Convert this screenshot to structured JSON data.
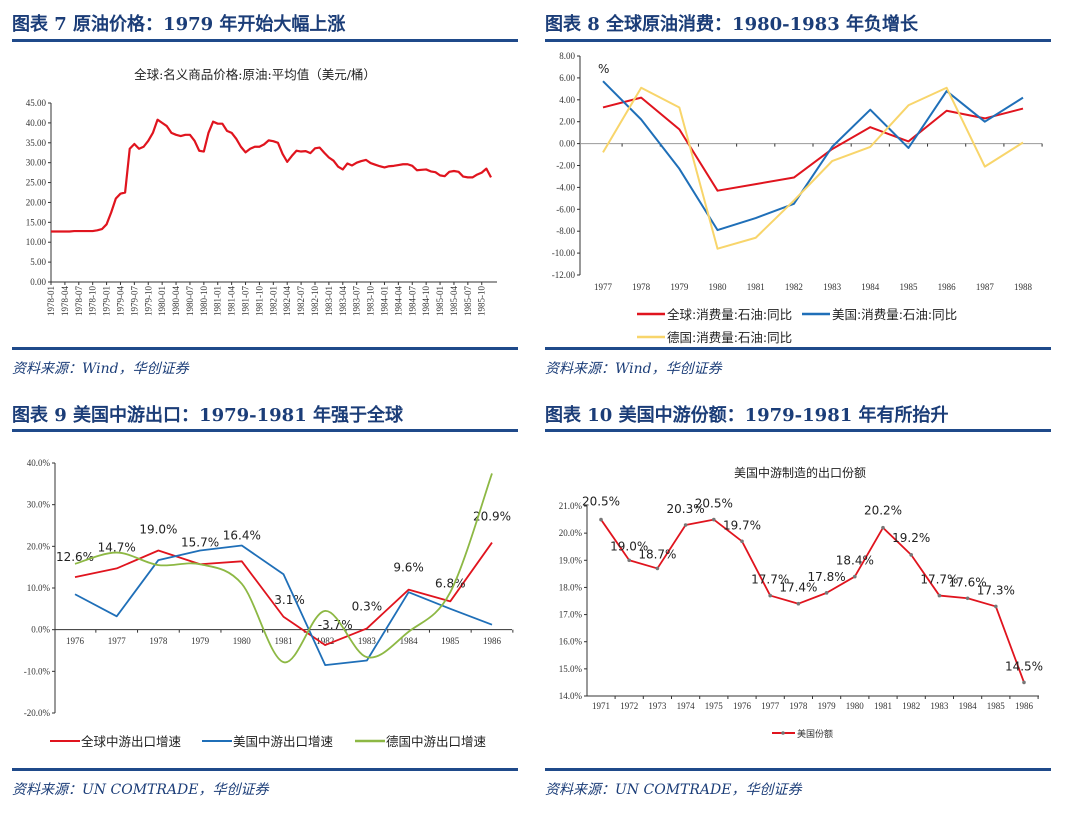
{
  "panels": [
    {
      "title": "图表 7   原油价格：1979 年开始大幅上涨",
      "source": "资料来源：Wind，华创证券"
    },
    {
      "title": "图表 8   全球原油消费：1980-1983 年负增长",
      "source": "资料来源：Wind，华创证券"
    },
    {
      "title": "图表 9   美国中游出口：1979-1981 年强于全球",
      "source": "资料来源：UN COMTRADE，华创证券"
    },
    {
      "title": "图表 10   美国中游份额：1979-1981 年有所抬升",
      "source": "资料来源：UN COMTRADE，华创证券"
    }
  ],
  "colors": {
    "accent": "#1f4a8a",
    "red": "#e0141e",
    "blue": "#1f6fb8",
    "yellow": "#f8d56b",
    "green": "#8db844"
  },
  "chart_data": [
    {
      "type": "line",
      "title": "全球:名义商品价格:原油:平均值（美元/桶）",
      "ylim": [
        0,
        45
      ],
      "yticks": [
        "0.00",
        "5.00",
        "10.00",
        "15.00",
        "20.00",
        "25.00",
        "30.00",
        "35.00",
        "40.00",
        "45.00"
      ],
      "x_start": "1978-01",
      "x_tick_labels": [
        "1978-01",
        "1978-04",
        "1978-07",
        "1978-10",
        "1979-01",
        "1979-04",
        "1979-07",
        "1979-10",
        "1980-01",
        "1980-04",
        "1980-07",
        "1980-10",
        "1981-01",
        "1981-04",
        "1981-07",
        "1981-10",
        "1982-01",
        "1982-04",
        "1982-07",
        "1982-10",
        "1983-01",
        "1983-04",
        "1983-07",
        "1983-10",
        "1984-01",
        "1984-04",
        "1984-07",
        "1984-10",
        "1985-01",
        "1985-04",
        "1985-07",
        "1985-10"
      ],
      "series": [
        {
          "color": "#e0141e",
          "values": [
            12.7,
            12.7,
            12.7,
            12.7,
            12.7,
            12.8,
            12.8,
            12.8,
            12.8,
            12.8,
            13.0,
            13.3,
            14.5,
            17.5,
            21.0,
            22.2,
            22.5,
            33.5,
            34.7,
            33.5,
            34.0,
            35.5,
            37.5,
            40.8,
            40.0,
            39.2,
            37.5,
            37.0,
            36.7,
            37.0,
            37.0,
            35.5,
            33.0,
            32.8,
            37.5,
            40.3,
            39.8,
            39.8,
            38.0,
            37.5,
            36.0,
            34.0,
            32.6,
            33.5,
            34.0,
            34.0,
            34.6,
            35.6,
            35.4,
            35.0,
            32.2,
            30.2,
            31.7,
            33.0,
            32.8,
            32.9,
            32.4,
            33.6,
            33.8,
            32.5,
            31.3,
            30.5,
            29.0,
            28.3,
            29.8,
            29.3,
            30.0,
            30.4,
            30.7,
            29.9,
            29.5,
            29.1,
            28.8,
            29.1,
            29.2,
            29.4,
            29.6,
            29.6,
            29.2,
            28.1,
            28.2,
            28.3,
            27.8,
            27.6,
            26.8,
            26.6,
            27.7,
            27.9,
            27.7,
            26.5,
            26.3,
            26.3,
            27.0,
            27.5,
            28.5,
            26.3
          ]
        }
      ]
    },
    {
      "type": "line",
      "ylabel": "%",
      "ylim": [
        -12,
        8
      ],
      "yticks": [
        "-12.00",
        "-10.00",
        "-8.00",
        "-6.00",
        "-4.00",
        "-2.00",
        "0.00",
        "2.00",
        "4.00",
        "6.00",
        "8.00"
      ],
      "categories": [
        "1977",
        "1978",
        "1979",
        "1980",
        "1981",
        "1982",
        "1983",
        "1984",
        "1985",
        "1986",
        "1987",
        "1988"
      ],
      "legend": "bottom",
      "series": [
        {
          "name": "全球:消费量:石油:同比",
          "color": "#e0141e",
          "values": [
            3.3,
            4.2,
            1.3,
            -4.3,
            -3.7,
            -3.1,
            -0.5,
            1.5,
            0.2,
            3.0,
            2.3,
            3.2
          ]
        },
        {
          "name": "美国:消费量:石油:同比",
          "color": "#1f6fb8",
          "values": [
            5.7,
            2.2,
            -2.3,
            -7.9,
            -6.8,
            -5.5,
            -0.3,
            3.1,
            -0.4,
            4.8,
            2.0,
            4.2
          ]
        },
        {
          "name": "德国:消费量:石油:同比",
          "color": "#f8d56b",
          "values": [
            -0.8,
            5.1,
            3.3,
            -9.6,
            -8.6,
            -5.2,
            -1.6,
            -0.3,
            3.5,
            5.1,
            -2.1,
            0.1
          ]
        }
      ]
    },
    {
      "type": "line",
      "ylim": [
        -20,
        40
      ],
      "yticks": [
        "-20.0%",
        "-10.0%",
        "0.0%",
        "10.0%",
        "20.0%",
        "30.0%",
        "40.0%"
      ],
      "categories": [
        "1976",
        "1977",
        "1978",
        "1979",
        "1980",
        "1981",
        "1982",
        "1983",
        "1984",
        "1985",
        "1986"
      ],
      "legend": "bottom",
      "series": [
        {
          "name": "全球中游出口增速",
          "color": "#e0141e",
          "values": [
            12.6,
            14.7,
            19.0,
            15.7,
            16.4,
            3.1,
            -3.7,
            0.3,
            9.6,
            6.8,
            20.9
          ],
          "data_labels": [
            "12.6%",
            "14.7%",
            "19.0%",
            "15.7%",
            "16.4%",
            "3.1%",
            "-3.7%",
            "0.3%",
            "9.6%",
            "6.8%",
            "20.9%"
          ]
        },
        {
          "name": "美国中游出口增速",
          "color": "#1f6fb8",
          "values": [
            8.5,
            3.2,
            16.7,
            19.0,
            20.2,
            13.3,
            -8.5,
            -7.4,
            9.0,
            5.0,
            1.2
          ]
        },
        {
          "name": "德国中游出口增速",
          "color": "#8db844",
          "smooth": true,
          "values": [
            15.8,
            18.5,
            15.5,
            15.7,
            11.0,
            -7.8,
            4.5,
            -6.6,
            -0.5,
            9.0,
            37.5
          ]
        }
      ]
    },
    {
      "type": "line",
      "title": "美国中游制造的出口份额",
      "ylim": [
        14,
        21
      ],
      "yticks": [
        "14.0%",
        "15.0%",
        "16.0%",
        "17.0%",
        "18.0%",
        "19.0%",
        "20.0%",
        "21.0%"
      ],
      "categories": [
        "1971",
        "1972",
        "1973",
        "1974",
        "1975",
        "1976",
        "1977",
        "1978",
        "1979",
        "1980",
        "1981",
        "1982",
        "1983",
        "1984",
        "1985",
        "1986"
      ],
      "legend": "bottom",
      "series": [
        {
          "name": "美国份额",
          "color": "#e0141e",
          "markers": true,
          "values": [
            20.5,
            19.0,
            18.7,
            20.3,
            20.5,
            19.7,
            17.7,
            17.4,
            17.8,
            18.4,
            20.2,
            19.2,
            17.7,
            17.6,
            17.3,
            14.5
          ],
          "data_labels": [
            "20.5%",
            "19.0%",
            "18.7%",
            "20.3%",
            "20.5%",
            "19.7%",
            "17.7%",
            "17.4%",
            "17.8%",
            "18.4%",
            "20.2%",
            "19.2%",
            "17.7%",
            "17.6%",
            "17.3%",
            "14.5%"
          ]
        }
      ]
    }
  ]
}
